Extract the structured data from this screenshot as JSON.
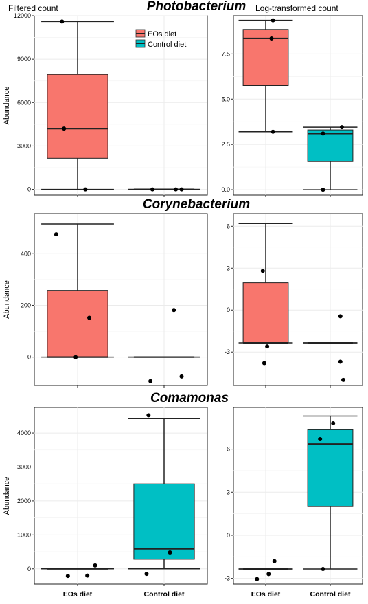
{
  "headers": {
    "left": "Filtered count",
    "right": "Log-transformed count"
  },
  "legend": {
    "items": [
      {
        "label": "EOs diet",
        "color": "#F8766D"
      },
      {
        "label": "Control diet",
        "color": "#00BFC4"
      }
    ]
  },
  "colors": {
    "eos": "#F8766D",
    "control": "#00BFC4",
    "grid": "#EBEBEB"
  },
  "chart_data": [
    {
      "type": "box",
      "genus": "Photobacterium",
      "panel": "filtered",
      "ylabel": "Abundance",
      "ylim": [
        -400,
        12000
      ],
      "ticks": [
        0,
        3000,
        6000,
        9000,
        12000
      ],
      "tick_labels": [
        "0",
        "3000",
        "6000",
        "9000",
        "12000"
      ],
      "categories": [
        "EOs diet",
        "Control diet"
      ],
      "show_xlabels": false,
      "boxes": [
        {
          "group": "EOs diet",
          "min": 0,
          "q1": 2150,
          "median": 4200,
          "q3": 7950,
          "max": 11600,
          "points": [
            [
              -0.4,
              11600
            ],
            [
              -0.35,
              4200
            ],
            [
              0.2,
              0
            ]
          ]
        },
        {
          "group": "Control diet",
          "min": 0,
          "q1": 0,
          "median": 0,
          "q3": 0,
          "max": 0,
          "points": [
            [
              -0.3,
              0
            ],
            [
              0.3,
              0
            ],
            [
              0.45,
              0
            ]
          ]
        }
      ]
    },
    {
      "type": "box",
      "genus": "Photobacterium",
      "panel": "log",
      "ylabel": "",
      "ylim": [
        -0.3,
        9.6
      ],
      "ticks": [
        0,
        2.5,
        5,
        7.5
      ],
      "tick_labels": [
        "0.0",
        "2.5",
        "5.0",
        "7.5"
      ],
      "categories": [
        "EOs diet",
        "Control diet"
      ],
      "show_xlabels": false,
      "boxes": [
        {
          "group": "EOs diet",
          "min": 3.2,
          "q1": 5.75,
          "median": 8.35,
          "q3": 8.85,
          "max": 9.35,
          "points": [
            [
              0.25,
              9.35
            ],
            [
              0.2,
              8.35
            ],
            [
              0.25,
              3.2
            ]
          ]
        },
        {
          "group": "Control diet",
          "min": 0,
          "q1": 1.55,
          "median": 3.1,
          "q3": 3.3,
          "max": 3.45,
          "points": [
            [
              0.4,
              3.45
            ],
            [
              -0.25,
              3.1
            ],
            [
              -0.25,
              0
            ]
          ]
        }
      ]
    },
    {
      "type": "box",
      "genus": "Corynebacterium",
      "panel": "filtered",
      "ylabel": "Abundance",
      "ylim": [
        -110,
        555
      ],
      "ticks": [
        0,
        200,
        400
      ],
      "tick_labels": [
        "0",
        "200",
        "400"
      ],
      "categories": [
        "EOs diet",
        "Control diet"
      ],
      "show_xlabels": false,
      "boxes": [
        {
          "group": "EOs diet",
          "min": 0,
          "q1": 0,
          "median": 0,
          "q3": 258,
          "max": 515,
          "points": [
            [
              -0.55,
              475
            ],
            [
              0.3,
              152
            ],
            [
              -0.05,
              0
            ]
          ]
        },
        {
          "group": "Control diet",
          "min": 0,
          "q1": 0,
          "median": 0,
          "q3": 0,
          "max": 0,
          "points": [
            [
              0.25,
              182
            ],
            [
              -0.35,
              -93
            ],
            [
              0.45,
              -75
            ]
          ]
        }
      ]
    },
    {
      "type": "box",
      "genus": "Corynebacterium",
      "panel": "log",
      "ylabel": "",
      "ylim": [
        -5.4,
        6.9
      ],
      "ticks": [
        -3,
        0,
        3,
        6
      ],
      "tick_labels": [
        "-3",
        "0",
        "3",
        "6"
      ],
      "categories": [
        "EOs diet",
        "Control diet"
      ],
      "show_xlabels": false,
      "boxes": [
        {
          "group": "EOs diet",
          "min": -2.35,
          "q1": -2.35,
          "median": -2.35,
          "q3": 1.95,
          "max": 6.2,
          "points": [
            [
              -0.1,
              2.8
            ],
            [
              0.05,
              -2.6
            ],
            [
              -0.05,
              -3.8
            ]
          ]
        },
        {
          "group": "Control diet",
          "min": -2.35,
          "q1": -2.35,
          "median": -2.35,
          "q3": -2.35,
          "max": -2.35,
          "points": [
            [
              0.35,
              -0.45
            ],
            [
              0.35,
              -3.7
            ],
            [
              0.45,
              -5.0
            ]
          ]
        }
      ]
    },
    {
      "type": "box",
      "genus": "Comamonas",
      "panel": "filtered",
      "ylabel": "Abundance",
      "ylim": [
        -450,
        4750
      ],
      "ticks": [
        0,
        1000,
        2000,
        3000,
        4000
      ],
      "tick_labels": [
        "0",
        "1000",
        "2000",
        "3000",
        "4000"
      ],
      "categories": [
        "EOs diet",
        "Control diet"
      ],
      "show_xlabels": true,
      "boxes": [
        {
          "group": "EOs diet",
          "min": 0,
          "q1": 0,
          "median": 0,
          "q3": 0,
          "max": 0,
          "points": [
            [
              -0.25,
              -210
            ],
            [
              0.25,
              -200
            ],
            [
              0.45,
              100
            ]
          ]
        },
        {
          "group": "Control diet",
          "min": 0,
          "q1": 280,
          "median": 590,
          "q3": 2500,
          "max": 4420,
          "points": [
            [
              -0.4,
              4520
            ],
            [
              0.15,
              480
            ],
            [
              -0.45,
              -150
            ]
          ]
        }
      ]
    },
    {
      "type": "box",
      "genus": "Comamonas",
      "panel": "log",
      "ylabel": "",
      "ylim": [
        -3.4,
        8.9
      ],
      "ticks": [
        -3,
        0,
        3,
        6
      ],
      "tick_labels": [
        "-3",
        "0",
        "3",
        "6"
      ],
      "categories": [
        "EOs diet",
        "Control diet"
      ],
      "show_xlabels": true,
      "boxes": [
        {
          "group": "EOs diet",
          "min": -2.35,
          "q1": -2.35,
          "median": -2.35,
          "q3": -2.35,
          "max": -2.35,
          "points": [
            [
              -0.3,
              -3.05
            ],
            [
              0.1,
              -2.7
            ],
            [
              0.3,
              -1.8
            ]
          ]
        },
        {
          "group": "Control diet",
          "min": -2.35,
          "q1": 2.0,
          "median": 6.35,
          "q3": 7.35,
          "max": 8.3,
          "points": [
            [
              -0.35,
              6.7
            ],
            [
              0.1,
              7.8
            ],
            [
              -0.25,
              -2.35
            ]
          ]
        }
      ]
    }
  ]
}
